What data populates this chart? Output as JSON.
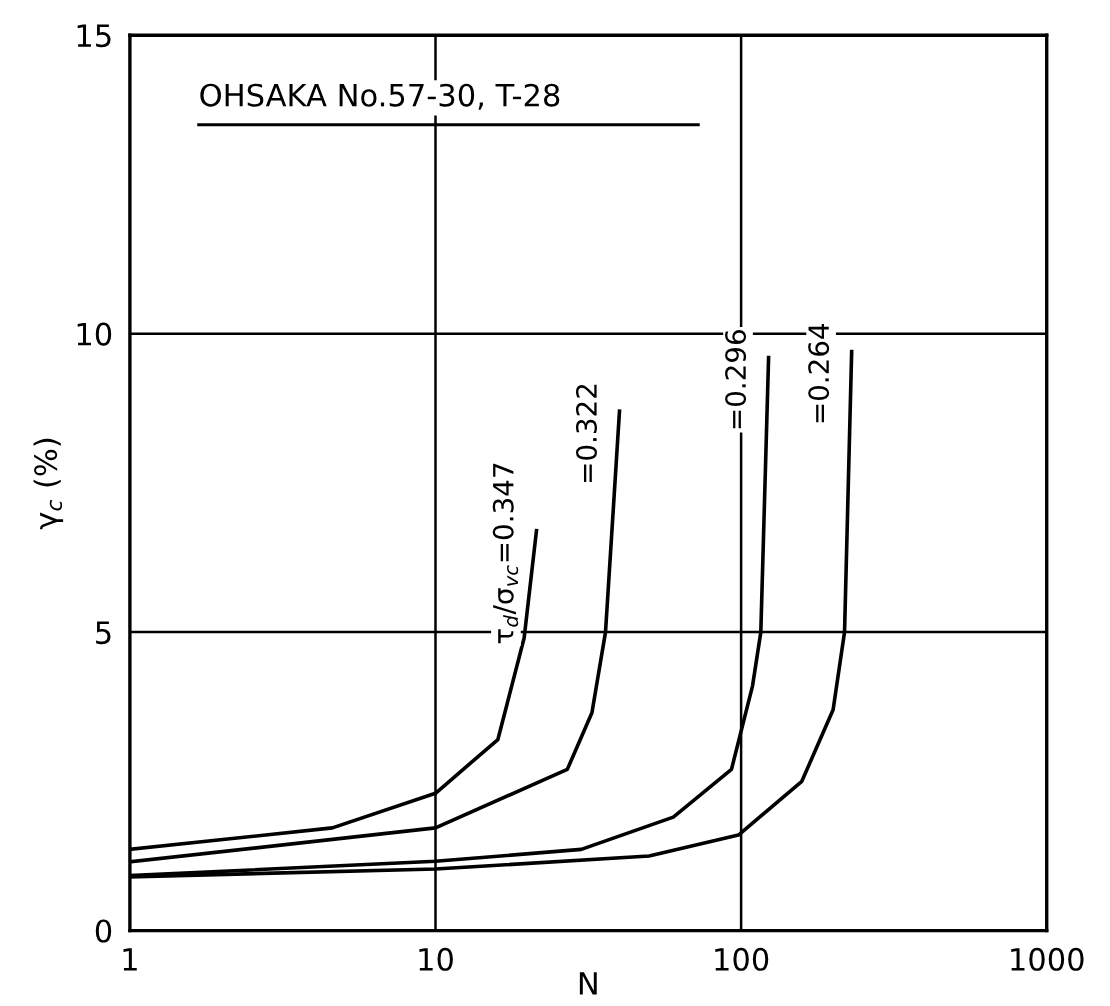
{
  "chart_data": {
    "type": "line",
    "title": "OHSAKA No.57-30, T-28",
    "xlabel": "N",
    "ylabel": "γ$_{c}$ (%)",
    "log": "x",
    "xlim": [
      1,
      1000
    ],
    "xticks": [
      1,
      10,
      100,
      1000
    ],
    "ylim": [
      0,
      15
    ],
    "yticks": [
      0,
      5,
      10,
      15
    ],
    "grid": true,
    "marker": "none",
    "line_style": "solid",
    "series": [
      {
        "color": "#000000",
        "x": [
          1,
          4.6,
          10,
          16,
          19.5,
          21.4
        ],
        "values": [
          1.36,
          1.72,
          2.3,
          3.2,
          4.9,
          6.7
        ]
      },
      {
        "color": "#000000",
        "x": [
          1,
          10,
          27,
          32.5,
          36,
          40
        ],
        "values": [
          1.15,
          1.72,
          2.7,
          3.65,
          5.0,
          8.7
        ]
      },
      {
        "color": "#000000",
        "x": [
          1,
          10,
          30,
          60,
          93,
          109,
          116,
          123
        ],
        "values": [
          0.92,
          1.16,
          1.36,
          1.9,
          2.7,
          4.1,
          5.0,
          9.6
        ]
      },
      {
        "color": "#000000",
        "x": [
          1,
          10,
          50,
          98,
          158,
          200,
          218,
          230
        ],
        "values": [
          0.9,
          1.03,
          1.25,
          1.6,
          2.5,
          3.7,
          5.0,
          9.7
        ]
      }
    ],
    "annotations": [
      "τ$_{d}$/σ$_{vc}$=0.347",
      "=0.322",
      "=0.296",
      "=0.264"
    ]
  }
}
